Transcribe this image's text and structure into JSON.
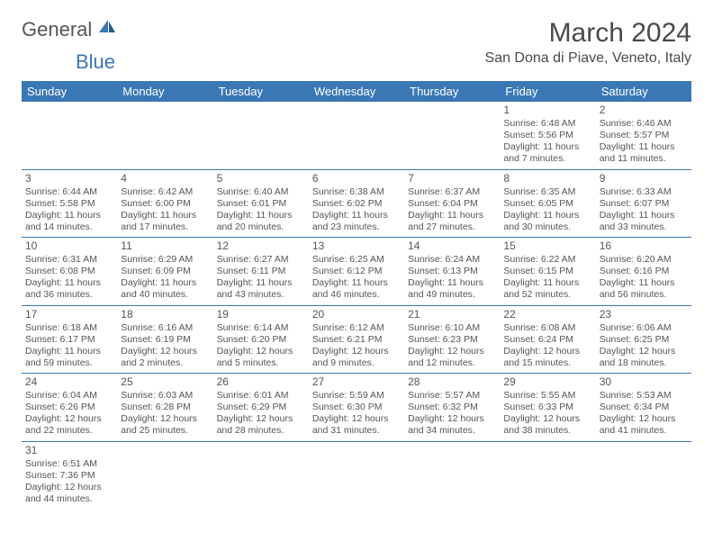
{
  "brand": {
    "part1": "General",
    "part2": "Blue"
  },
  "title": "March 2024",
  "location": "San Dona di Piave, Veneto, Italy",
  "header_bg": "#3a78b5",
  "weekdays": [
    "Sunday",
    "Monday",
    "Tuesday",
    "Wednesday",
    "Thursday",
    "Friday",
    "Saturday"
  ],
  "weeks": [
    [
      null,
      null,
      null,
      null,
      null,
      {
        "n": "1",
        "sr": "Sunrise: 6:48 AM",
        "ss": "Sunset: 5:56 PM",
        "dl1": "Daylight: 11 hours",
        "dl2": "and 7 minutes."
      },
      {
        "n": "2",
        "sr": "Sunrise: 6:46 AM",
        "ss": "Sunset: 5:57 PM",
        "dl1": "Daylight: 11 hours",
        "dl2": "and 11 minutes."
      }
    ],
    [
      {
        "n": "3",
        "sr": "Sunrise: 6:44 AM",
        "ss": "Sunset: 5:58 PM",
        "dl1": "Daylight: 11 hours",
        "dl2": "and 14 minutes."
      },
      {
        "n": "4",
        "sr": "Sunrise: 6:42 AM",
        "ss": "Sunset: 6:00 PM",
        "dl1": "Daylight: 11 hours",
        "dl2": "and 17 minutes."
      },
      {
        "n": "5",
        "sr": "Sunrise: 6:40 AM",
        "ss": "Sunset: 6:01 PM",
        "dl1": "Daylight: 11 hours",
        "dl2": "and 20 minutes."
      },
      {
        "n": "6",
        "sr": "Sunrise: 6:38 AM",
        "ss": "Sunset: 6:02 PM",
        "dl1": "Daylight: 11 hours",
        "dl2": "and 23 minutes."
      },
      {
        "n": "7",
        "sr": "Sunrise: 6:37 AM",
        "ss": "Sunset: 6:04 PM",
        "dl1": "Daylight: 11 hours",
        "dl2": "and 27 minutes."
      },
      {
        "n": "8",
        "sr": "Sunrise: 6:35 AM",
        "ss": "Sunset: 6:05 PM",
        "dl1": "Daylight: 11 hours",
        "dl2": "and 30 minutes."
      },
      {
        "n": "9",
        "sr": "Sunrise: 6:33 AM",
        "ss": "Sunset: 6:07 PM",
        "dl1": "Daylight: 11 hours",
        "dl2": "and 33 minutes."
      }
    ],
    [
      {
        "n": "10",
        "sr": "Sunrise: 6:31 AM",
        "ss": "Sunset: 6:08 PM",
        "dl1": "Daylight: 11 hours",
        "dl2": "and 36 minutes."
      },
      {
        "n": "11",
        "sr": "Sunrise: 6:29 AM",
        "ss": "Sunset: 6:09 PM",
        "dl1": "Daylight: 11 hours",
        "dl2": "and 40 minutes."
      },
      {
        "n": "12",
        "sr": "Sunrise: 6:27 AM",
        "ss": "Sunset: 6:11 PM",
        "dl1": "Daylight: 11 hours",
        "dl2": "and 43 minutes."
      },
      {
        "n": "13",
        "sr": "Sunrise: 6:25 AM",
        "ss": "Sunset: 6:12 PM",
        "dl1": "Daylight: 11 hours",
        "dl2": "and 46 minutes."
      },
      {
        "n": "14",
        "sr": "Sunrise: 6:24 AM",
        "ss": "Sunset: 6:13 PM",
        "dl1": "Daylight: 11 hours",
        "dl2": "and 49 minutes."
      },
      {
        "n": "15",
        "sr": "Sunrise: 6:22 AM",
        "ss": "Sunset: 6:15 PM",
        "dl1": "Daylight: 11 hours",
        "dl2": "and 52 minutes."
      },
      {
        "n": "16",
        "sr": "Sunrise: 6:20 AM",
        "ss": "Sunset: 6:16 PM",
        "dl1": "Daylight: 11 hours",
        "dl2": "and 56 minutes."
      }
    ],
    [
      {
        "n": "17",
        "sr": "Sunrise: 6:18 AM",
        "ss": "Sunset: 6:17 PM",
        "dl1": "Daylight: 11 hours",
        "dl2": "and 59 minutes."
      },
      {
        "n": "18",
        "sr": "Sunrise: 6:16 AM",
        "ss": "Sunset: 6:19 PM",
        "dl1": "Daylight: 12 hours",
        "dl2": "and 2 minutes."
      },
      {
        "n": "19",
        "sr": "Sunrise: 6:14 AM",
        "ss": "Sunset: 6:20 PM",
        "dl1": "Daylight: 12 hours",
        "dl2": "and 5 minutes."
      },
      {
        "n": "20",
        "sr": "Sunrise: 6:12 AM",
        "ss": "Sunset: 6:21 PM",
        "dl1": "Daylight: 12 hours",
        "dl2": "and 9 minutes."
      },
      {
        "n": "21",
        "sr": "Sunrise: 6:10 AM",
        "ss": "Sunset: 6:23 PM",
        "dl1": "Daylight: 12 hours",
        "dl2": "and 12 minutes."
      },
      {
        "n": "22",
        "sr": "Sunrise: 6:08 AM",
        "ss": "Sunset: 6:24 PM",
        "dl1": "Daylight: 12 hours",
        "dl2": "and 15 minutes."
      },
      {
        "n": "23",
        "sr": "Sunrise: 6:06 AM",
        "ss": "Sunset: 6:25 PM",
        "dl1": "Daylight: 12 hours",
        "dl2": "and 18 minutes."
      }
    ],
    [
      {
        "n": "24",
        "sr": "Sunrise: 6:04 AM",
        "ss": "Sunset: 6:26 PM",
        "dl1": "Daylight: 12 hours",
        "dl2": "and 22 minutes."
      },
      {
        "n": "25",
        "sr": "Sunrise: 6:03 AM",
        "ss": "Sunset: 6:28 PM",
        "dl1": "Daylight: 12 hours",
        "dl2": "and 25 minutes."
      },
      {
        "n": "26",
        "sr": "Sunrise: 6:01 AM",
        "ss": "Sunset: 6:29 PM",
        "dl1": "Daylight: 12 hours",
        "dl2": "and 28 minutes."
      },
      {
        "n": "27",
        "sr": "Sunrise: 5:59 AM",
        "ss": "Sunset: 6:30 PM",
        "dl1": "Daylight: 12 hours",
        "dl2": "and 31 minutes."
      },
      {
        "n": "28",
        "sr": "Sunrise: 5:57 AM",
        "ss": "Sunset: 6:32 PM",
        "dl1": "Daylight: 12 hours",
        "dl2": "and 34 minutes."
      },
      {
        "n": "29",
        "sr": "Sunrise: 5:55 AM",
        "ss": "Sunset: 6:33 PM",
        "dl1": "Daylight: 12 hours",
        "dl2": "and 38 minutes."
      },
      {
        "n": "30",
        "sr": "Sunrise: 5:53 AM",
        "ss": "Sunset: 6:34 PM",
        "dl1": "Daylight: 12 hours",
        "dl2": "and 41 minutes."
      }
    ],
    [
      {
        "n": "31",
        "sr": "Sunrise: 6:51 AM",
        "ss": "Sunset: 7:36 PM",
        "dl1": "Daylight: 12 hours",
        "dl2": "and 44 minutes."
      },
      null,
      null,
      null,
      null,
      null,
      null
    ]
  ]
}
